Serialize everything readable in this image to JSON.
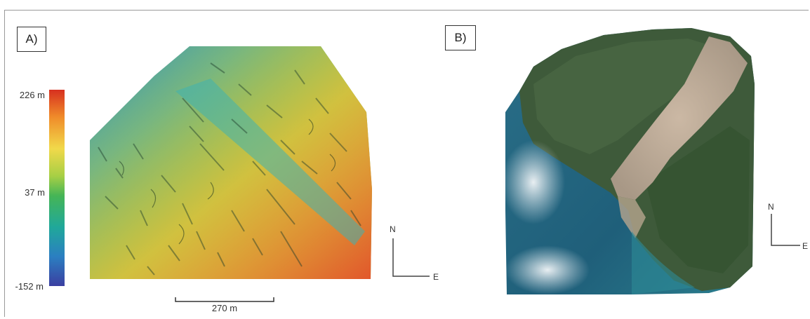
{
  "panels": {
    "a": {
      "label": "A)"
    },
    "b": {
      "label": "B)"
    }
  },
  "colorbar": {
    "max_label": "226 m",
    "mid_label": "37 m",
    "min_label": "-152 m",
    "colors": [
      "#d7301f",
      "#f1d94a",
      "#45b556",
      "#2b7fc1",
      "#3b3fa1"
    ]
  },
  "scale_bar": {
    "label": "270 m"
  },
  "north_arrow": {
    "north": "N",
    "east": "E"
  }
}
